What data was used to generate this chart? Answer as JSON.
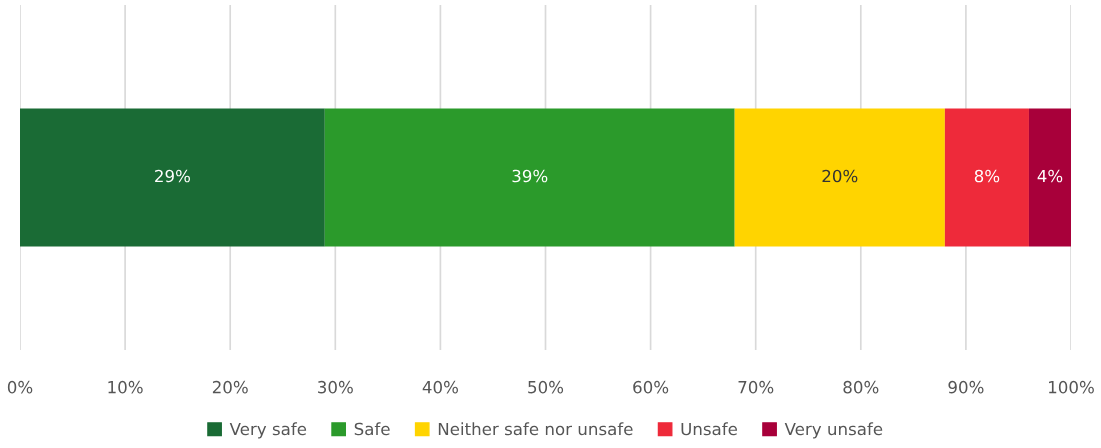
{
  "chart_data": {
    "type": "bar",
    "orientation": "horizontal",
    "stacked": true,
    "categories": [
      null
    ],
    "series": [
      {
        "name": "Very safe",
        "color": "#1a6b35",
        "values": [
          29
        ],
        "value_labels": [
          "29%"
        ]
      },
      {
        "name": "Safe",
        "color": "#2b9a2b",
        "values": [
          39
        ],
        "value_labels": [
          "39%"
        ]
      },
      {
        "name": "Neither safe nor unsafe",
        "color": "#ffd400",
        "values": [
          20
        ],
        "value_labels": [
          "20%"
        ]
      },
      {
        "name": "Unsafe",
        "color": "#ee2a3a",
        "values": [
          8
        ],
        "value_labels": [
          "8%"
        ]
      },
      {
        "name": "Very unsafe",
        "color": "#a8003a",
        "values": [
          4
        ],
        "value_labels": [
          "4%"
        ]
      }
    ],
    "xlim": [
      0,
      100
    ],
    "xticks": [
      {
        "value": 0,
        "label": "0%"
      },
      {
        "value": 10,
        "label": "10%"
      },
      {
        "value": 20,
        "label": "20%"
      },
      {
        "value": 30,
        "label": "30%"
      },
      {
        "value": 40,
        "label": "40%"
      },
      {
        "value": 50,
        "label": "50%"
      },
      {
        "value": 60,
        "label": "60%"
      },
      {
        "value": 70,
        "label": "70%"
      },
      {
        "value": 80,
        "label": "80%"
      },
      {
        "value": 90,
        "label": "90%"
      },
      {
        "value": 100,
        "label": "100%"
      }
    ],
    "grid": "x",
    "legend": "bottom"
  }
}
